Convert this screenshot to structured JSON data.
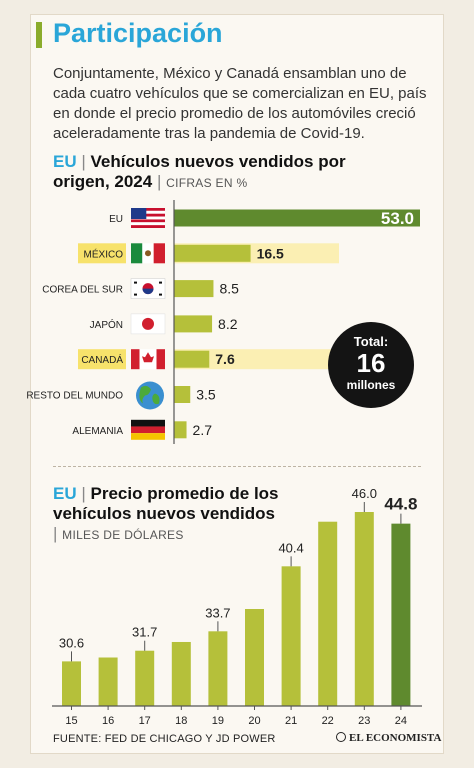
{
  "header": {
    "title": "Participación",
    "intro": "Conjuntamente, México y Canadá ensamblan uno de cada cuatro vehículos que se comercializan en EU, país en donde el precio promedio de los automóviles creció aceleradamente tras la pandemia de Covid-19."
  },
  "chart1_header": {
    "tag": "EU",
    "title": "Vehículos nuevos vendidos por origen, 2024",
    "unit": "CIFRAS EN %"
  },
  "total_badge": {
    "label": "Total:",
    "value": "16",
    "unit": "millones"
  },
  "chart2_header": {
    "tag": "EU",
    "title": "Precio promedio de los vehículos nuevos vendidos",
    "unit": "MILES DE DÓLARES"
  },
  "footer": {
    "source": "FUENTE: FED DE CHICAGO Y JD POWER",
    "brand": "EL ECONOMISTA"
  },
  "colors": {
    "bar": "#b5c03a",
    "highlight_bar": "#5f8a2e",
    "title_blue": "#2aa6d8",
    "yellow_band": "#f7e26b"
  },
  "chart_data": [
    {
      "type": "bar",
      "orientation": "horizontal",
      "categories": [
        "EU",
        "MÉXICO",
        "COREA DEL SUR",
        "JAPÓN",
        "CANADÁ",
        "RESTO DEL MUNDO",
        "ALEMANIA"
      ],
      "values": [
        53.0,
        16.5,
        8.5,
        8.2,
        7.6,
        3.5,
        2.7
      ],
      "value_labels": [
        "53.0",
        "16.5",
        "8.5",
        "8.2",
        "7.6",
        "3.5",
        "2.7"
      ],
      "highlighted": [
        "MÉXICO",
        "CANADÁ"
      ],
      "flags": [
        "usa-flag-icon",
        "mexico-flag-icon",
        "korea-flag-icon",
        "japan-flag-icon",
        "canada-flag-icon",
        "globe-icon",
        "germany-flag-icon"
      ],
      "xlim": [
        0,
        53
      ]
    },
    {
      "type": "bar",
      "categories": [
        "15",
        "16",
        "17",
        "18",
        "19",
        "20",
        "21",
        "22",
        "23",
        "24"
      ],
      "values": [
        30.6,
        31.0,
        31.7,
        32.6,
        33.7,
        36.0,
        40.4,
        45.0,
        46.0,
        44.8
      ],
      "value_labels": [
        "30.6",
        "",
        "31.7",
        "",
        "33.7",
        "",
        "40.4",
        "",
        "46.0",
        "44.8"
      ],
      "ylim": [
        26,
        46
      ]
    }
  ]
}
